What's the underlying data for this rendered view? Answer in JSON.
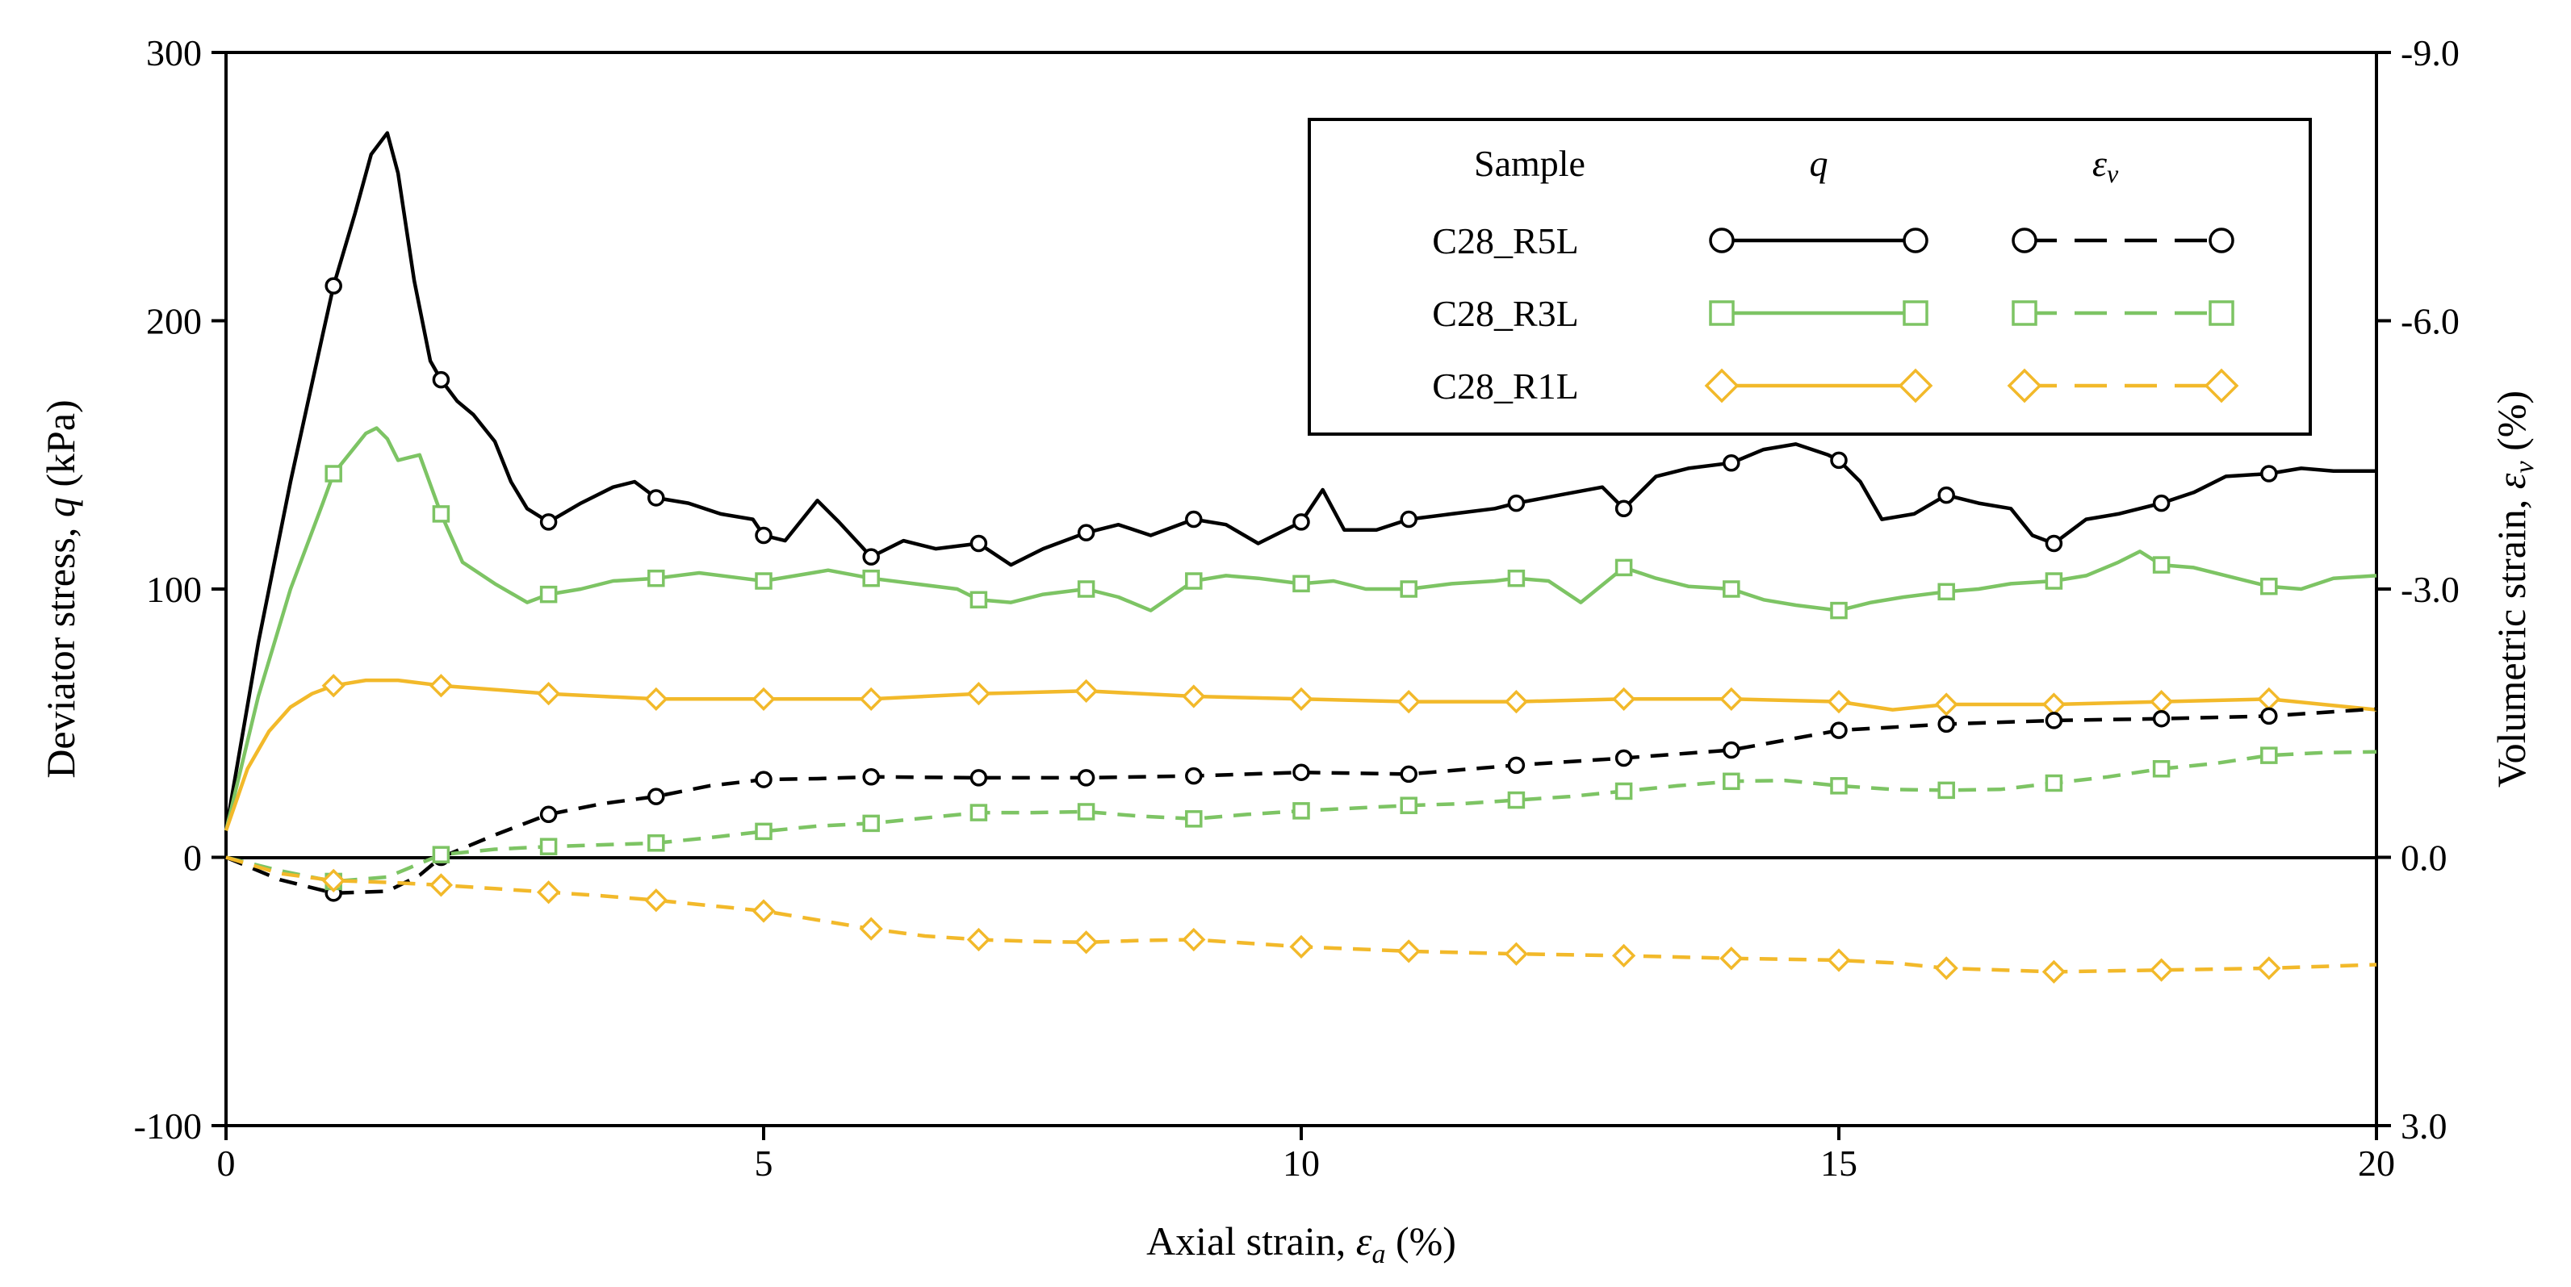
{
  "chart_data": {
    "type": "line",
    "xlabel": "Axial strain, ε_a (%)",
    "xlabel_parts": {
      "prefix": "Axial strain, ",
      "symbol": "ε",
      "sub": "a",
      "suffix": " (%)"
    },
    "ylabel_left": "Deviator stress, q (kPa)",
    "ylabel_left_parts": {
      "prefix": "Deviator stress, ",
      "symbol": "q",
      "suffix": " (kPa)"
    },
    "ylabel_right": "Volumetric strain, ε_v (%)",
    "ylabel_right_parts": {
      "prefix": "Volumetric strain, ",
      "symbol": "ε",
      "sub": "v",
      "suffix": " (%)"
    },
    "xlim": [
      0,
      20
    ],
    "ylim_left": [
      -100,
      300
    ],
    "ylim_right": [
      3.0,
      -9.0
    ],
    "xticks": [
      0,
      5,
      10,
      15,
      20
    ],
    "xtick_labels": [
      "0",
      "5",
      "10",
      "15",
      "20"
    ],
    "yticks_left": [
      -100,
      0,
      100,
      200,
      300
    ],
    "ytick_labels_left": [
      "-100",
      "0",
      "100",
      "200",
      "300"
    ],
    "yticks_right": [
      3.0,
      0.0,
      -3.0,
      -6.0,
      -9.0
    ],
    "ytick_labels_right": [
      "3.0",
      "0.0",
      "-3.0",
      "-6.0",
      "-9.0"
    ],
    "grid": false,
    "zero_line": true,
    "legend": {
      "position": "top-right",
      "header_sample": "Sample",
      "header_q": "q",
      "header_ev_symbol": "ε",
      "header_ev_sub": "v",
      "entries": [
        "C28_R5L",
        "C28_R3L",
        "C28_R1L"
      ]
    },
    "series": [
      {
        "name": "C28_R5L",
        "quantity": "q",
        "axis": "left",
        "color": "#000000",
        "dash": "solid",
        "marker": "circle",
        "x": [
          0,
          0.3,
          0.6,
          0.9,
          1.0,
          1.2,
          1.35,
          1.5,
          1.6,
          1.75,
          1.9,
          2.0,
          2.15,
          2.3,
          2.5,
          2.65,
          2.8,
          3.0,
          3.3,
          3.6,
          3.8,
          4.0,
          4.3,
          4.6,
          4.9,
          5.0,
          5.2,
          5.5,
          5.7,
          6.0,
          6.3,
          6.6,
          7.0,
          7.3,
          7.6,
          8.0,
          8.3,
          8.6,
          9.0,
          9.3,
          9.6,
          10.0,
          10.2,
          10.4,
          10.7,
          11.0,
          11.4,
          11.8,
          12.0,
          12.4,
          12.8,
          13.0,
          13.3,
          13.6,
          14.0,
          14.3,
          14.6,
          14.9,
          15.0,
          15.2,
          15.4,
          15.7,
          16.0,
          16.3,
          16.6,
          16.8,
          17.0,
          17.3,
          17.6,
          18.0,
          18.3,
          18.6,
          19.0,
          19.3,
          19.6,
          20.0
        ],
        "y": [
          10,
          80,
          140,
          195,
          213,
          240,
          262,
          270,
          255,
          215,
          185,
          178,
          170,
          165,
          155,
          140,
          130,
          125,
          132,
          138,
          140,
          134,
          132,
          128,
          126,
          120,
          118,
          133,
          125,
          112,
          118,
          115,
          117,
          109,
          115,
          121,
          124,
          120,
          126,
          124,
          117,
          125,
          137,
          122,
          122,
          126,
          128,
          130,
          132,
          135,
          138,
          130,
          142,
          145,
          147,
          152,
          154,
          150,
          148,
          140,
          126,
          128,
          135,
          132,
          130,
          120,
          117,
          126,
          128,
          132,
          136,
          142,
          143,
          145,
          144,
          144
        ],
        "marker_x": [
          1,
          2,
          3,
          4,
          5,
          6,
          7,
          8,
          9,
          10,
          11,
          12,
          13,
          14,
          15,
          16,
          17,
          18,
          19
        ]
      },
      {
        "name": "C28_R3L",
        "quantity": "q",
        "axis": "left",
        "color": "#7dc464",
        "dash": "solid",
        "marker": "square",
        "x": [
          0,
          0.3,
          0.6,
          0.9,
          1.0,
          1.2,
          1.3,
          1.4,
          1.5,
          1.6,
          1.8,
          2.0,
          2.2,
          2.5,
          2.8,
          3.0,
          3.3,
          3.6,
          4.0,
          4.4,
          4.8,
          5.0,
          5.3,
          5.6,
          6.0,
          6.4,
          6.8,
          7.0,
          7.3,
          7.6,
          8.0,
          8.3,
          8.6,
          9.0,
          9.3,
          9.6,
          10.0,
          10.3,
          10.6,
          11.0,
          11.4,
          11.8,
          12.0,
          12.3,
          12.6,
          13.0,
          13.3,
          13.6,
          14.0,
          14.3,
          14.6,
          15.0,
          15.3,
          15.6,
          16.0,
          16.3,
          16.6,
          17.0,
          17.3,
          17.6,
          17.8,
          18.0,
          18.3,
          18.6,
          19.0,
          19.3,
          19.6,
          20.0
        ],
        "y": [
          10,
          60,
          100,
          132,
          143,
          153,
          158,
          160,
          156,
          148,
          150,
          128,
          110,
          102,
          95,
          98,
          100,
          103,
          104,
          106,
          104,
          103,
          105,
          107,
          104,
          102,
          100,
          96,
          95,
          98,
          100,
          97,
          92,
          103,
          105,
          104,
          102,
          103,
          100,
          100,
          102,
          103,
          104,
          103,
          95,
          108,
          104,
          101,
          100,
          96,
          94,
          92,
          95,
          97,
          99,
          100,
          102,
          103,
          105,
          110,
          114,
          109,
          108,
          105,
          101,
          100,
          104,
          105
        ],
        "marker_x": [
          1,
          2,
          3,
          4,
          5,
          6,
          7,
          8,
          9,
          10,
          11,
          12,
          13,
          14,
          15,
          16,
          17,
          18,
          19
        ]
      },
      {
        "name": "C28_R1L",
        "quantity": "q",
        "axis": "left",
        "color": "#f2b92a",
        "dash": "solid",
        "marker": "diamond",
        "x": [
          0,
          0.2,
          0.4,
          0.6,
          0.8,
          1.0,
          1.3,
          1.6,
          2.0,
          3.0,
          4.0,
          5.0,
          6.0,
          7.0,
          8.0,
          9.0,
          10.0,
          11.0,
          12.0,
          13.0,
          14.0,
          15.0,
          15.5,
          16.0,
          17.0,
          18.0,
          19.0,
          19.5,
          20.0
        ],
        "y": [
          10,
          33,
          47,
          56,
          61,
          64,
          66,
          66,
          64,
          61,
          59,
          59,
          59,
          61,
          62,
          60,
          59,
          58,
          58,
          59,
          59,
          58,
          55,
          57,
          57,
          58,
          59,
          57,
          55
        ],
        "marker_x": [
          1,
          2,
          3,
          4,
          5,
          6,
          7,
          8,
          9,
          10,
          11,
          12,
          13,
          14,
          15,
          16,
          17,
          18,
          19
        ]
      },
      {
        "name": "C28_R5L",
        "quantity": "ε_v",
        "axis": "right",
        "color": "#000000",
        "dash": "dashed",
        "marker": "circle",
        "x": [
          0,
          0.5,
          1.0,
          1.5,
          1.8,
          2.0,
          2.5,
          3.0,
          3.5,
          4.0,
          4.5,
          5.0,
          5.5,
          6.0,
          7.0,
          8.0,
          9.0,
          10.0,
          11.0,
          12.0,
          13.0,
          14.0,
          15.0,
          16.0,
          17.0,
          18.0,
          19.0,
          20.0
        ],
        "y": [
          0,
          0.25,
          0.4,
          0.38,
          0.2,
          0.0,
          -0.25,
          -0.48,
          -0.6,
          -0.68,
          -0.8,
          -0.87,
          -0.88,
          -0.9,
          -0.89,
          -0.89,
          -0.91,
          -0.95,
          -0.93,
          -1.03,
          -1.11,
          -1.2,
          -1.42,
          -1.49,
          -1.53,
          -1.55,
          -1.58,
          -1.66
        ],
        "marker_x": [
          1,
          2,
          3,
          4,
          5,
          6,
          7,
          8,
          9,
          10,
          11,
          12,
          13,
          14,
          15,
          16,
          17,
          18,
          19
        ]
      },
      {
        "name": "C28_R3L",
        "quantity": "ε_v",
        "axis": "right",
        "color": "#7dc464",
        "dash": "dashed",
        "marker": "square",
        "x": [
          0,
          0.5,
          1.0,
          1.5,
          2.0,
          2.5,
          3.0,
          3.5,
          4.0,
          4.5,
          5.0,
          5.5,
          6.0,
          6.5,
          7.0,
          7.5,
          8.0,
          8.5,
          9.0,
          9.5,
          10.0,
          10.5,
          11.0,
          11.5,
          12.0,
          12.5,
          13.0,
          13.5,
          14.0,
          14.5,
          15.0,
          15.5,
          16.0,
          16.5,
          17.0,
          17.5,
          18.0,
          18.5,
          19.0,
          19.5,
          20.0
        ],
        "y": [
          0,
          0.15,
          0.27,
          0.22,
          -0.03,
          -0.09,
          -0.12,
          -0.14,
          -0.16,
          -0.22,
          -0.29,
          -0.35,
          -0.38,
          -0.44,
          -0.5,
          -0.5,
          -0.51,
          -0.46,
          -0.43,
          -0.48,
          -0.52,
          -0.55,
          -0.58,
          -0.6,
          -0.64,
          -0.68,
          -0.74,
          -0.8,
          -0.85,
          -0.86,
          -0.8,
          -0.76,
          -0.75,
          -0.76,
          -0.83,
          -0.9,
          -0.99,
          -1.05,
          -1.14,
          -1.17,
          -1.18
        ],
        "marker_x": [
          1,
          2,
          3,
          4,
          5,
          6,
          7,
          8,
          9,
          10,
          11,
          12,
          13,
          14,
          15,
          16,
          17,
          18,
          19
        ]
      },
      {
        "name": "C28_R1L",
        "quantity": "ε_v",
        "axis": "right",
        "color": "#f2b92a",
        "dash": "dashed",
        "marker": "diamond",
        "x": [
          0,
          0.5,
          1.0,
          1.5,
          2.0,
          2.5,
          3.0,
          3.5,
          4.0,
          4.5,
          5.0,
          5.5,
          6.0,
          6.5,
          7.0,
          7.5,
          8.0,
          8.5,
          9.0,
          9.5,
          10.0,
          11.0,
          12.0,
          13.0,
          14.0,
          15.0,
          15.5,
          16.0,
          17.0,
          18.0,
          19.0,
          20.0
        ],
        "y": [
          0,
          0.18,
          0.26,
          0.28,
          0.31,
          0.35,
          0.39,
          0.43,
          0.48,
          0.54,
          0.6,
          0.7,
          0.8,
          0.88,
          0.92,
          0.94,
          0.95,
          0.93,
          0.92,
          0.96,
          1.0,
          1.05,
          1.08,
          1.1,
          1.13,
          1.15,
          1.18,
          1.24,
          1.28,
          1.26,
          1.24,
          1.2
        ],
        "marker_x": [
          1,
          2,
          3,
          4,
          5,
          6,
          7,
          8,
          9,
          10,
          11,
          12,
          13,
          14,
          15,
          16,
          17,
          18,
          19
        ]
      }
    ]
  }
}
